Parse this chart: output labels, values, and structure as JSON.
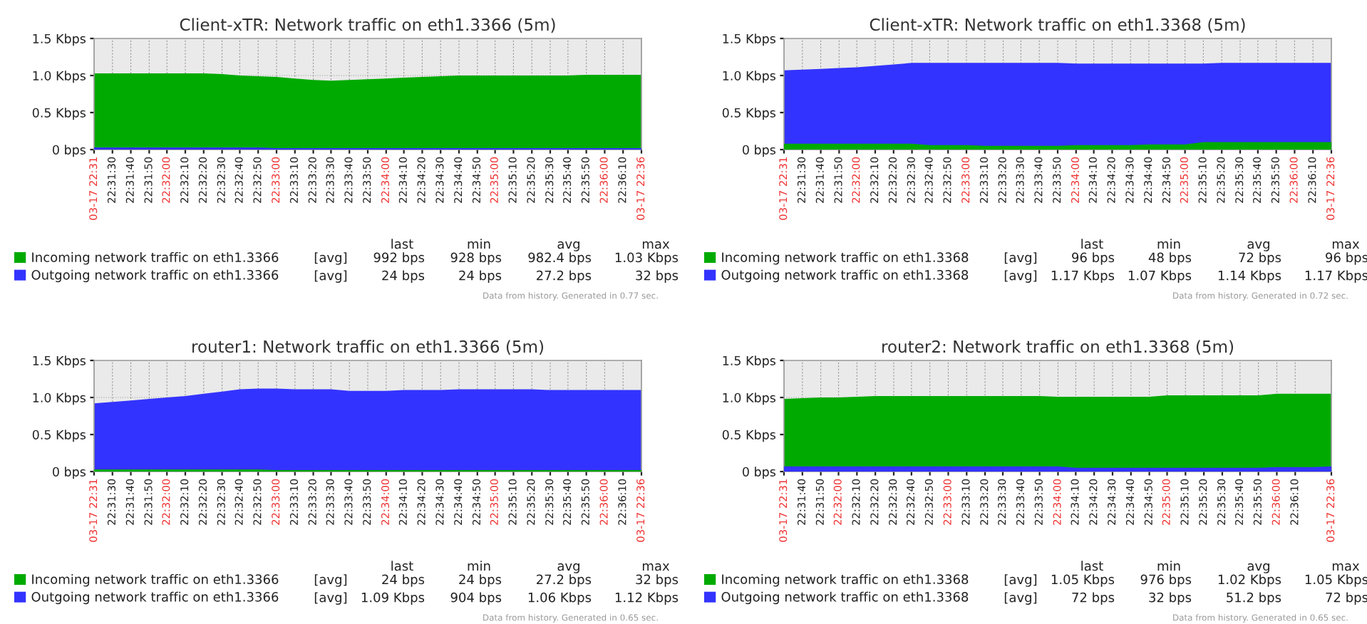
{
  "chart_data": [
    {
      "type": "area",
      "title": "Client-xTR: Network traffic on eth1.3366 (5m)",
      "x": [
        22.5222,
        22.525,
        22.5278,
        22.5306,
        22.5333,
        22.5361,
        22.5389,
        22.5417,
        22.5444,
        22.5472,
        22.55,
        22.5528,
        22.5556,
        22.5583,
        22.5611,
        22.5639,
        22.5667,
        22.5694,
        22.5722,
        22.575,
        22.5778,
        22.5806,
        22.5833,
        22.5861,
        22.5889,
        22.5917,
        22.5944,
        22.5972,
        22.6,
        22.6028,
        22.6056
      ],
      "series": [
        {
          "name": "Incoming network traffic on eth1.3366",
          "color": "#00aa00",
          "values": [
            1.03,
            1.03,
            1.03,
            1.03,
            1.03,
            1.03,
            1.03,
            1.02,
            1.0,
            0.99,
            0.98,
            0.96,
            0.94,
            0.93,
            0.94,
            0.95,
            0.96,
            0.97,
            0.98,
            0.99,
            1.0,
            1.0,
            1.0,
            1.0,
            1.0,
            1.0,
            1.0,
            1.01,
            1.01,
            1.01,
            1.01
          ]
        },
        {
          "name": "Outgoing network traffic on eth1.3366",
          "color": "#3333ff",
          "values": [
            0.03,
            0.03,
            0.03,
            0.03,
            0.03,
            0.03,
            0.03,
            0.03,
            0.03,
            0.03,
            0.02,
            0.02,
            0.02,
            0.02,
            0.02,
            0.02,
            0.02,
            0.02,
            0.02,
            0.02,
            0.02,
            0.02,
            0.02,
            0.02,
            0.02,
            0.02,
            0.02,
            0.02,
            0.02,
            0.02,
            0.02
          ]
        }
      ],
      "xlim": [
        22.5222,
        22.6056
      ],
      "xticks": [
        {
          "value": 22.5222,
          "label": "03-17 22:31"
        },
        {
          "value": 22.525,
          "label": "22:31:30"
        },
        {
          "value": 22.5278,
          "label": "22:31:40"
        },
        {
          "value": 22.5306,
          "label": "22:31:50"
        },
        {
          "value": 22.5333,
          "label": "22:32:00"
        },
        {
          "value": 22.5361,
          "label": "22:32:10"
        },
        {
          "value": 22.5389,
          "label": "22:32:20"
        },
        {
          "value": 22.5417,
          "label": "22:32:30"
        },
        {
          "value": 22.5444,
          "label": "22:32:40"
        },
        {
          "value": 22.5472,
          "label": "22:32:50"
        },
        {
          "value": 22.55,
          "label": "22:33:00"
        },
        {
          "value": 22.5528,
          "label": "22:33:10"
        },
        {
          "value": 22.5556,
          "label": "22:33:20"
        },
        {
          "value": 22.5583,
          "label": "22:33:30"
        },
        {
          "value": 22.5611,
          "label": "22:33:40"
        },
        {
          "value": 22.5639,
          "label": "22:33:50"
        },
        {
          "value": 22.5667,
          "label": "22:34:00"
        },
        {
          "value": 22.5694,
          "label": "22:34:10"
        },
        {
          "value": 22.5722,
          "label": "22:34:20"
        },
        {
          "value": 22.575,
          "label": "22:34:30"
        },
        {
          "value": 22.5778,
          "label": "22:34:40"
        },
        {
          "value": 22.5806,
          "label": "22:34:50"
        },
        {
          "value": 22.5833,
          "label": "22:35:00"
        },
        {
          "value": 22.5861,
          "label": "22:35:10"
        },
        {
          "value": 22.5889,
          "label": "22:35:20"
        },
        {
          "value": 22.5917,
          "label": "22:35:30"
        },
        {
          "value": 22.5944,
          "label": "22:35:40"
        },
        {
          "value": 22.5972,
          "label": "22:35:50"
        },
        {
          "value": 22.6,
          "label": "22:36:00"
        },
        {
          "value": 22.6028,
          "label": "22:36:10"
        },
        {
          "value": 22.6056,
          "label": "03-17 22:36"
        }
      ],
      "ylim": [
        0,
        1.5
      ],
      "yticks": [
        {
          "value": 0,
          "label": "0 bps"
        },
        {
          "value": 0.5,
          "label": "0.5 Kbps"
        },
        {
          "value": 1.0,
          "label": "1.0 Kbps"
        },
        {
          "value": 1.5,
          "label": "1.5 Kbps"
        }
      ],
      "grid": true,
      "legend": "bottom",
      "annotations": [
        "last",
        "min",
        "avg",
        "max",
        "[avg]",
        "992 bps",
        "928 bps",
        "982.4 bps",
        "1.03 Kbps",
        "[avg]",
        "24 bps",
        "24 bps",
        "27.2 bps",
        "32 bps",
        "Data from history. Generated in 0.77 sec."
      ]
    },
    {
      "type": "area",
      "title": "Client-xTR: Network traffic on eth1.3368 (5m)",
      "x": [
        22.5222,
        22.525,
        22.5278,
        22.5306,
        22.5333,
        22.5361,
        22.5389,
        22.5417,
        22.5444,
        22.5472,
        22.55,
        22.5528,
        22.5556,
        22.5583,
        22.5611,
        22.5639,
        22.5667,
        22.5694,
        22.5722,
        22.575,
        22.5778,
        22.5806,
        22.5833,
        22.5861,
        22.5889,
        22.5917,
        22.5944,
        22.5972,
        22.6,
        22.6028,
        22.6056
      ],
      "series": [
        {
          "name": "Incoming network traffic on eth1.3368",
          "color": "#00aa00",
          "values": [
            0.08,
            0.08,
            0.08,
            0.08,
            0.08,
            0.08,
            0.08,
            0.08,
            0.06,
            0.06,
            0.06,
            0.05,
            0.05,
            0.05,
            0.05,
            0.05,
            0.06,
            0.06,
            0.06,
            0.06,
            0.07,
            0.07,
            0.07,
            0.1,
            0.1,
            0.1,
            0.1,
            0.1,
            0.1,
            0.1,
            0.1
          ]
        },
        {
          "name": "Outgoing network traffic on eth1.3368",
          "color": "#3333ff",
          "values": [
            1.07,
            1.08,
            1.09,
            1.1,
            1.11,
            1.13,
            1.15,
            1.17,
            1.17,
            1.17,
            1.17,
            1.17,
            1.17,
            1.17,
            1.17,
            1.17,
            1.16,
            1.16,
            1.16,
            1.16,
            1.16,
            1.16,
            1.16,
            1.16,
            1.17,
            1.17,
            1.17,
            1.17,
            1.17,
            1.17,
            1.17
          ]
        }
      ],
      "xlim": [
        22.5222,
        22.6056
      ],
      "xticks": [
        {
          "value": 22.5222,
          "label": "03-17 22:31"
        },
        {
          "value": 22.525,
          "label": "22:31:30"
        },
        {
          "value": 22.5278,
          "label": "22:31:40"
        },
        {
          "value": 22.5306,
          "label": "22:31:50"
        },
        {
          "value": 22.5333,
          "label": "22:32:00"
        },
        {
          "value": 22.5361,
          "label": "22:32:10"
        },
        {
          "value": 22.5389,
          "label": "22:32:20"
        },
        {
          "value": 22.5417,
          "label": "22:32:30"
        },
        {
          "value": 22.5444,
          "label": "22:32:40"
        },
        {
          "value": 22.5472,
          "label": "22:32:50"
        },
        {
          "value": 22.55,
          "label": "22:33:00"
        },
        {
          "value": 22.5528,
          "label": "22:33:10"
        },
        {
          "value": 22.5556,
          "label": "22:33:20"
        },
        {
          "value": 22.5583,
          "label": "22:33:30"
        },
        {
          "value": 22.5611,
          "label": "22:33:40"
        },
        {
          "value": 22.5639,
          "label": "22:33:50"
        },
        {
          "value": 22.5667,
          "label": "22:34:00"
        },
        {
          "value": 22.5694,
          "label": "22:34:10"
        },
        {
          "value": 22.5722,
          "label": "22:34:20"
        },
        {
          "value": 22.575,
          "label": "22:34:30"
        },
        {
          "value": 22.5778,
          "label": "22:34:40"
        },
        {
          "value": 22.5806,
          "label": "22:34:50"
        },
        {
          "value": 22.5833,
          "label": "22:35:00"
        },
        {
          "value": 22.5861,
          "label": "22:35:10"
        },
        {
          "value": 22.5889,
          "label": "22:35:20"
        },
        {
          "value": 22.5917,
          "label": "22:35:30"
        },
        {
          "value": 22.5944,
          "label": "22:35:40"
        },
        {
          "value": 22.5972,
          "label": "22:35:50"
        },
        {
          "value": 22.6,
          "label": "22:36:00"
        },
        {
          "value": 22.6028,
          "label": "22:36:10"
        },
        {
          "value": 22.6056,
          "label": "03-17 22:36"
        }
      ],
      "ylim": [
        0,
        1.5
      ],
      "yticks": [
        {
          "value": 0,
          "label": "0 bps"
        },
        {
          "value": 0.5,
          "label": "0.5 Kbps"
        },
        {
          "value": 1.0,
          "label": "1.0 Kbps"
        },
        {
          "value": 1.5,
          "label": "1.5 Kbps"
        }
      ],
      "grid": true,
      "legend": "bottom",
      "annotations": [
        "last",
        "min",
        "avg",
        "max",
        "[avg]",
        "96 bps",
        "48 bps",
        "72 bps",
        "96 bps",
        "[avg]",
        "1.17 Kbps",
        "1.07 Kbps",
        "1.14 Kbps",
        "1.17 Kbps",
        "Data from history. Generated in 0.72 sec."
      ]
    },
    {
      "type": "area",
      "title": "router1: Network traffic on eth1.3366 (5m)",
      "x": [
        22.5222,
        22.525,
        22.5278,
        22.5306,
        22.5333,
        22.5361,
        22.5389,
        22.5417,
        22.5444,
        22.5472,
        22.55,
        22.5528,
        22.5556,
        22.5583,
        22.5611,
        22.5639,
        22.5667,
        22.5694,
        22.5722,
        22.575,
        22.5778,
        22.5806,
        22.5833,
        22.5861,
        22.5889,
        22.5917,
        22.5944,
        22.5972,
        22.6,
        22.6028,
        22.6056
      ],
      "series": [
        {
          "name": "Incoming network traffic on eth1.3366",
          "color": "#00aa00",
          "values": [
            0.03,
            0.03,
            0.03,
            0.03,
            0.03,
            0.03,
            0.03,
            0.03,
            0.03,
            0.03,
            0.02,
            0.02,
            0.02,
            0.02,
            0.02,
            0.02,
            0.02,
            0.02,
            0.02,
            0.02,
            0.02,
            0.02,
            0.02,
            0.02,
            0.02,
            0.02,
            0.02,
            0.02,
            0.02,
            0.02,
            0.02
          ]
        },
        {
          "name": "Outgoing network traffic on eth1.3366",
          "color": "#3333ff",
          "values": [
            0.92,
            0.94,
            0.96,
            0.98,
            1.0,
            1.02,
            1.05,
            1.08,
            1.11,
            1.12,
            1.12,
            1.11,
            1.11,
            1.11,
            1.09,
            1.09,
            1.09,
            1.1,
            1.1,
            1.1,
            1.11,
            1.11,
            1.11,
            1.11,
            1.11,
            1.1,
            1.1,
            1.1,
            1.1,
            1.1,
            1.1
          ]
        }
      ],
      "xlim": [
        22.5222,
        22.6056
      ],
      "xticks": [
        {
          "value": 22.5222,
          "label": "03-17 22:31"
        },
        {
          "value": 22.525,
          "label": "22:31:30"
        },
        {
          "value": 22.5278,
          "label": "22:31:40"
        },
        {
          "value": 22.5306,
          "label": "22:31:50"
        },
        {
          "value": 22.5333,
          "label": "22:32:00"
        },
        {
          "value": 22.5361,
          "label": "22:32:10"
        },
        {
          "value": 22.5389,
          "label": "22:32:20"
        },
        {
          "value": 22.5417,
          "label": "22:32:30"
        },
        {
          "value": 22.5444,
          "label": "22:32:40"
        },
        {
          "value": 22.5472,
          "label": "22:32:50"
        },
        {
          "value": 22.55,
          "label": "22:33:00"
        },
        {
          "value": 22.5528,
          "label": "22:33:10"
        },
        {
          "value": 22.5556,
          "label": "22:33:20"
        },
        {
          "value": 22.5583,
          "label": "22:33:30"
        },
        {
          "value": 22.5611,
          "label": "22:33:40"
        },
        {
          "value": 22.5639,
          "label": "22:33:50"
        },
        {
          "value": 22.5667,
          "label": "22:34:00"
        },
        {
          "value": 22.5694,
          "label": "22:34:10"
        },
        {
          "value": 22.5722,
          "label": "22:34:20"
        },
        {
          "value": 22.575,
          "label": "22:34:30"
        },
        {
          "value": 22.5778,
          "label": "22:34:40"
        },
        {
          "value": 22.5806,
          "label": "22:34:50"
        },
        {
          "value": 22.5833,
          "label": "22:35:00"
        },
        {
          "value": 22.5861,
          "label": "22:35:10"
        },
        {
          "value": 22.5889,
          "label": "22:35:20"
        },
        {
          "value": 22.5917,
          "label": "22:35:30"
        },
        {
          "value": 22.5944,
          "label": "22:35:40"
        },
        {
          "value": 22.5972,
          "label": "22:35:50"
        },
        {
          "value": 22.6,
          "label": "22:36:00"
        },
        {
          "value": 22.6028,
          "label": "22:36:10"
        },
        {
          "value": 22.6056,
          "label": "03-17 22:36"
        }
      ],
      "ylim": [
        0,
        1.5
      ],
      "yticks": [
        {
          "value": 0,
          "label": "0 bps"
        },
        {
          "value": 0.5,
          "label": "0.5 Kbps"
        },
        {
          "value": 1.0,
          "label": "1.0 Kbps"
        },
        {
          "value": 1.5,
          "label": "1.5 Kbps"
        }
      ],
      "grid": true,
      "legend": "bottom",
      "annotations": [
        "last",
        "min",
        "avg",
        "max",
        "[avg]",
        "24 bps",
        "24 bps",
        "27.2 bps",
        "32 bps",
        "[avg]",
        "1.09 Kbps",
        "904 bps",
        "1.06 Kbps",
        "1.12 Kbps",
        "Data from history. Generated in 0.65 sec."
      ]
    },
    {
      "type": "area",
      "title": "router2: Network traffic on eth1.3368 (5m)",
      "x": [
        22.525,
        22.5278,
        22.5306,
        22.5333,
        22.5361,
        22.5389,
        22.5417,
        22.5444,
        22.5472,
        22.55,
        22.5528,
        22.5556,
        22.5583,
        22.5611,
        22.5639,
        22.5667,
        22.5694,
        22.5722,
        22.575,
        22.5778,
        22.5806,
        22.5833,
        22.5861,
        22.5889,
        22.5917,
        22.5944,
        22.5972,
        22.6,
        22.6028,
        22.6056,
        22.6083
      ],
      "series": [
        {
          "name": "Incoming network traffic on eth1.3368",
          "color": "#00aa00",
          "values": [
            0.98,
            0.99,
            1.0,
            1.0,
            1.01,
            1.02,
            1.02,
            1.02,
            1.02,
            1.02,
            1.02,
            1.02,
            1.02,
            1.02,
            1.02,
            1.01,
            1.01,
            1.01,
            1.01,
            1.01,
            1.01,
            1.03,
            1.03,
            1.03,
            1.03,
            1.03,
            1.03,
            1.05,
            1.05,
            1.05,
            1.05
          ]
        },
        {
          "name": "Outgoing network traffic on eth1.3368",
          "color": "#3333ff",
          "values": [
            0.07,
            0.07,
            0.07,
            0.07,
            0.07,
            0.07,
            0.07,
            0.07,
            0.07,
            0.07,
            0.07,
            0.07,
            0.07,
            0.07,
            0.07,
            0.07,
            0.05,
            0.05,
            0.05,
            0.05,
            0.05,
            0.05,
            0.05,
            0.05,
            0.05,
            0.05,
            0.05,
            0.06,
            0.06,
            0.06,
            0.07
          ]
        }
      ],
      "xlim": [
        22.525,
        22.6083
      ],
      "xticks": [
        {
          "value": 22.525,
          "label": "03-17 22:31"
        },
        {
          "value": 22.5278,
          "label": "22:31:40"
        },
        {
          "value": 22.5306,
          "label": "22:31:50"
        },
        {
          "value": 22.5333,
          "label": "22:32:00"
        },
        {
          "value": 22.5361,
          "label": "22:32:10"
        },
        {
          "value": 22.5389,
          "label": "22:32:20"
        },
        {
          "value": 22.5417,
          "label": "22:32:30"
        },
        {
          "value": 22.5444,
          "label": "22:32:40"
        },
        {
          "value": 22.5472,
          "label": "22:32:50"
        },
        {
          "value": 22.55,
          "label": "22:33:00"
        },
        {
          "value": 22.5528,
          "label": "22:33:10"
        },
        {
          "value": 22.5556,
          "label": "22:33:20"
        },
        {
          "value": 22.5583,
          "label": "22:33:30"
        },
        {
          "value": 22.5611,
          "label": "22:33:40"
        },
        {
          "value": 22.5639,
          "label": "22:33:50"
        },
        {
          "value": 22.5667,
          "label": "22:34:00"
        },
        {
          "value": 22.5694,
          "label": "22:34:10"
        },
        {
          "value": 22.5722,
          "label": "22:34:20"
        },
        {
          "value": 22.575,
          "label": "22:34:30"
        },
        {
          "value": 22.5778,
          "label": "22:34:40"
        },
        {
          "value": 22.5806,
          "label": "22:34:50"
        },
        {
          "value": 22.5833,
          "label": "22:35:00"
        },
        {
          "value": 22.5861,
          "label": "22:35:10"
        },
        {
          "value": 22.5889,
          "label": "22:35:20"
        },
        {
          "value": 22.5917,
          "label": "22:35:30"
        },
        {
          "value": 22.5944,
          "label": "22:35:40"
        },
        {
          "value": 22.5972,
          "label": "22:35:50"
        },
        {
          "value": 22.6,
          "label": "22:36:00"
        },
        {
          "value": 22.6028,
          "label": "22:36:10"
        },
        {
          "value": 22.6083,
          "label": "03-17 22:36"
        }
      ],
      "ylim": [
        0,
        1.5
      ],
      "yticks": [
        {
          "value": 0,
          "label": "0 bps"
        },
        {
          "value": 0.5,
          "label": "0.5 Kbps"
        },
        {
          "value": 1.0,
          "label": "1.0 Kbps"
        },
        {
          "value": 1.5,
          "label": "1.5 Kbps"
        }
      ],
      "grid": true,
      "legend": "bottom",
      "annotations": [
        "last",
        "min",
        "avg",
        "max",
        "[avg]",
        "1.05 Kbps",
        "976 bps",
        "1.02 Kbps",
        "1.05 Kbps",
        "[avg]",
        "72 bps",
        "32 bps",
        "51.2 bps",
        "72 bps",
        "Data from history. Generated in 0.65 sec."
      ]
    }
  ]
}
